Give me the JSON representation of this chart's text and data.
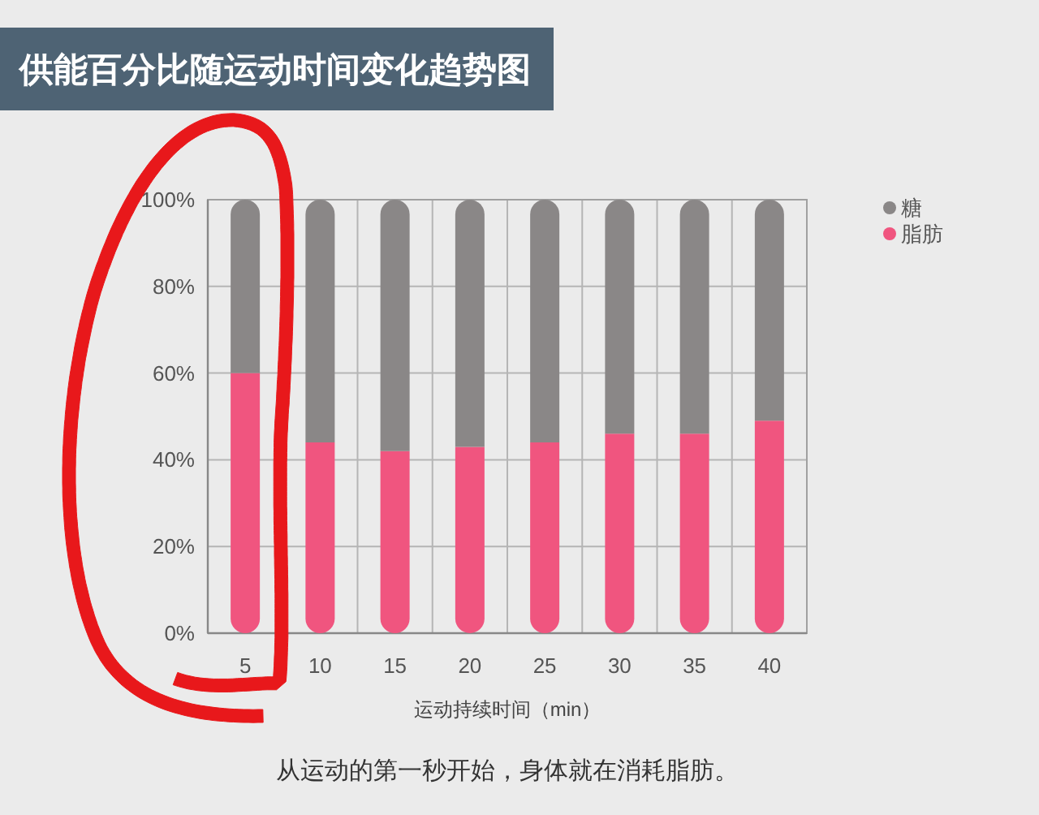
{
  "chart_data": {
    "type": "bar",
    "title": "供能百分比随运动时间变化趋势图",
    "xlabel": "运动持续时间（min）",
    "annotations": [
      "从运动的第一秒开始，身体就在消耗脂肪。"
    ],
    "categories": [
      "5",
      "10",
      "15",
      "20",
      "25",
      "30",
      "35",
      "40"
    ],
    "stacked": true,
    "series": [
      {
        "name": "脂肪",
        "color": "#f0557f",
        "values": [
          60,
          44,
          42,
          43,
          44,
          46,
          46,
          49
        ]
      },
      {
        "name": "糖",
        "color": "#8a8787",
        "values": [
          40,
          56,
          58,
          57,
          56,
          54,
          54,
          51
        ]
      }
    ],
    "ylim": [
      0,
      100
    ],
    "yticks": [
      {
        "value": 0,
        "label": "0%"
      },
      {
        "value": 20,
        "label": "20%"
      },
      {
        "value": 40,
        "label": "40%"
      },
      {
        "value": 60,
        "label": "60%"
      },
      {
        "value": 80,
        "label": "80%"
      },
      {
        "value": 100,
        "label": "100%"
      }
    ],
    "grid": true,
    "legend": "top right"
  }
}
